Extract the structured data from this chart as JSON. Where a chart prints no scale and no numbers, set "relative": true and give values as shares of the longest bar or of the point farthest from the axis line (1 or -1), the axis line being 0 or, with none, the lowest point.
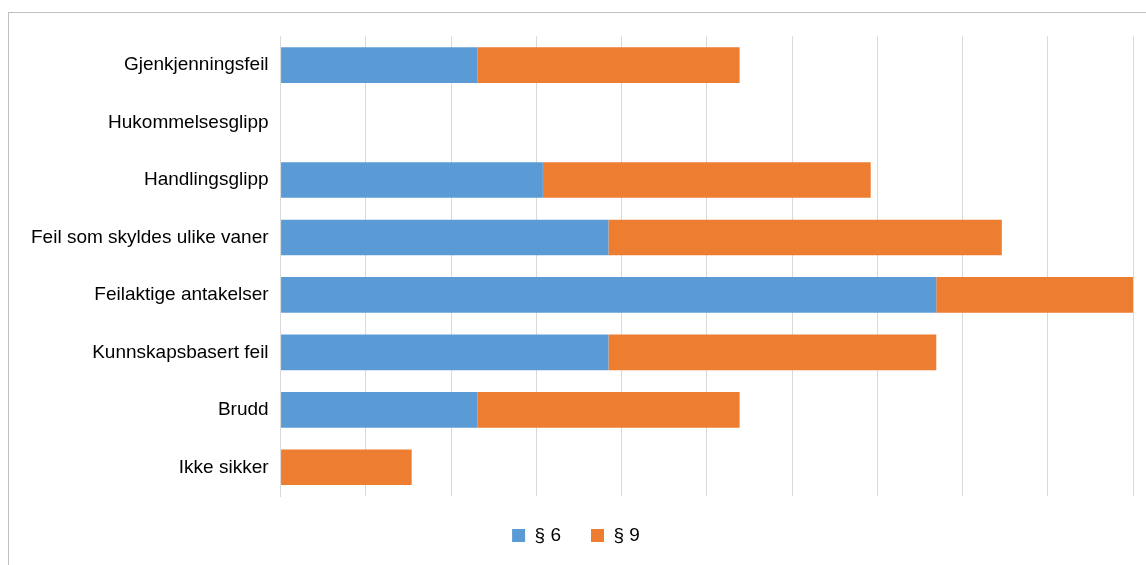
{
  "chart_data": {
    "type": "bar",
    "orientation": "horizontal",
    "stacked": true,
    "relative": true,
    "grid": "x",
    "legend": "bottom",
    "categories": [
      "Gjenkjenningsfeil",
      "Hukommelsesglipp",
      "Handlingsglipp",
      "Feil som skyldes ulike vaner",
      "Feilaktige antakelser",
      "Kunnskapsbasert feil",
      "Brudd",
      "Ikke sikker"
    ],
    "series": [
      {
        "name": "§ 6",
        "color": "#5b9bd5",
        "values": [
          0.2308,
          0,
          0.3077,
          0.3846,
          0.7692,
          0.3846,
          0.2308,
          0
        ]
      },
      {
        "name": "§ 9",
        "color": "#ed7d31",
        "values": [
          0.3077,
          0,
          0.3846,
          0.4615,
          0.2308,
          0.3846,
          0.3077,
          0.1538
        ]
      }
    ]
  }
}
